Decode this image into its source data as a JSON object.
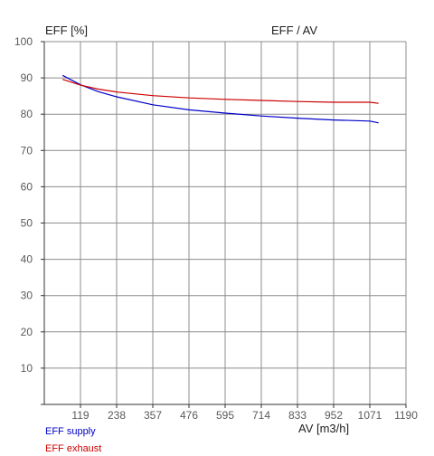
{
  "chart_data": {
    "type": "line",
    "title": "EFF / AV",
    "ylabel": "EFF [%]",
    "xlabel": "AV [m3/h]",
    "xlim": [
      0,
      1190
    ],
    "ylim": [
      0,
      100
    ],
    "x_ticks": [
      119,
      238,
      357,
      476,
      595,
      714,
      833,
      952,
      1071,
      1190
    ],
    "y_ticks": [
      10,
      20,
      30,
      40,
      50,
      60,
      70,
      80,
      90,
      100
    ],
    "grid": true,
    "legend_position": "bottom-left",
    "series": [
      {
        "name": "EFF supply",
        "color": "#0000c8",
        "x": [
          60,
          119,
          178,
          238,
          357,
          476,
          595,
          714,
          833,
          952,
          1071,
          1100
        ],
        "y": [
          90.7,
          88.1,
          86.2,
          84.8,
          82.6,
          81.2,
          80.3,
          79.5,
          78.9,
          78.4,
          78.1,
          77.6
        ]
      },
      {
        "name": "EFF exhaust",
        "color": "#cc0000",
        "x": [
          60,
          119,
          178,
          238,
          357,
          476,
          595,
          714,
          833,
          952,
          1071,
          1100
        ],
        "y": [
          89.6,
          88.0,
          86.9,
          86.1,
          85.1,
          84.5,
          84.1,
          83.8,
          83.5,
          83.3,
          83.3,
          83.0
        ]
      }
    ]
  }
}
